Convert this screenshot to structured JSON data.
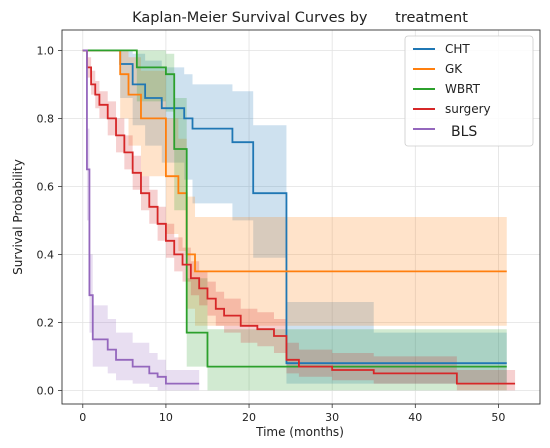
{
  "chart_data": {
    "type": "line",
    "title": "Kaplan-Meier Survival Curves by      treatment",
    "xlabel": "Time (months)",
    "ylabel": "Survival Probability",
    "xlim": [
      -2.5,
      55
    ],
    "ylim": [
      -0.04,
      1.06
    ],
    "xticks": [
      0,
      10,
      20,
      30,
      40,
      50
    ],
    "yticks": [
      0.0,
      0.2,
      0.4,
      0.6,
      0.8,
      1.0
    ],
    "grid": true,
    "legend_position": "top-right",
    "series": [
      {
        "name": "CHT",
        "color": "#1f77b4",
        "steps": [
          [
            0,
            1.0
          ],
          [
            4.5,
            0.96
          ],
          [
            6,
            0.9
          ],
          [
            7.5,
            0.86
          ],
          [
            9.5,
            0.83
          ],
          [
            12.2,
            0.8
          ],
          [
            13.2,
            0.77
          ],
          [
            18,
            0.73
          ],
          [
            20.5,
            0.58
          ],
          [
            24.5,
            0.08
          ],
          [
            35,
            0.08
          ],
          [
            51,
            0.08
          ]
        ],
        "ci_low": [
          [
            0,
            1.0
          ],
          [
            4.5,
            0.86
          ],
          [
            6,
            0.78
          ],
          [
            7.5,
            0.72
          ],
          [
            9.5,
            0.67
          ],
          [
            12.2,
            0.62
          ],
          [
            13.2,
            0.55
          ],
          [
            18,
            0.5
          ],
          [
            20.5,
            0.39
          ],
          [
            24.5,
            0.02
          ],
          [
            35,
            0.02
          ],
          [
            51,
            0.02
          ]
        ],
        "ci_high": [
          [
            0,
            1.0
          ],
          [
            4.5,
            1.0
          ],
          [
            6,
            0.99
          ],
          [
            7.5,
            0.97
          ],
          [
            9.5,
            0.95
          ],
          [
            12.2,
            0.93
          ],
          [
            13.2,
            0.9
          ],
          [
            18,
            0.88
          ],
          [
            20.5,
            0.78
          ],
          [
            24.5,
            0.26
          ],
          [
            35,
            0.17
          ],
          [
            51,
            0.17
          ]
        ]
      },
      {
        "name": "GK",
        "color": "#ff7f0e",
        "steps": [
          [
            0,
            1.0
          ],
          [
            4.5,
            0.93
          ],
          [
            5.5,
            0.87
          ],
          [
            7,
            0.8
          ],
          [
            10,
            0.63
          ],
          [
            11.5,
            0.58
          ],
          [
            12.5,
            0.4
          ],
          [
            13.5,
            0.35
          ],
          [
            51,
            0.35
          ]
        ],
        "ci_low": [
          [
            0,
            1.0
          ],
          [
            4.5,
            0.8
          ],
          [
            5.5,
            0.72
          ],
          [
            7,
            0.63
          ],
          [
            10,
            0.46
          ],
          [
            11.5,
            0.41
          ],
          [
            12.5,
            0.24
          ],
          [
            13.5,
            0.19
          ],
          [
            51,
            0.19
          ]
        ],
        "ci_high": [
          [
            0,
            1.0
          ],
          [
            4.5,
            1.0
          ],
          [
            5.5,
            0.98
          ],
          [
            7,
            0.94
          ],
          [
            10,
            0.8
          ],
          [
            11.5,
            0.74
          ],
          [
            12.5,
            0.57
          ],
          [
            13.5,
            0.51
          ],
          [
            51,
            0.51
          ]
        ]
      },
      {
        "name": "WBRT",
        "color": "#2ca02c",
        "steps": [
          [
            0,
            1.0
          ],
          [
            6.5,
            0.95
          ],
          [
            10,
            0.93
          ],
          [
            11,
            0.71
          ],
          [
            12.5,
            0.17
          ],
          [
            15,
            0.07
          ],
          [
            24,
            0.07
          ],
          [
            51,
            0.07
          ]
        ],
        "ci_low": [
          [
            0,
            1.0
          ],
          [
            6.5,
            0.85
          ],
          [
            10,
            0.82
          ],
          [
            11,
            0.53
          ],
          [
            12.5,
            0.07
          ],
          [
            15,
            0.0
          ],
          [
            24,
            0.0
          ],
          [
            51,
            0.0
          ]
        ],
        "ci_high": [
          [
            0,
            1.0
          ],
          [
            6.5,
            1.0
          ],
          [
            10,
            0.99
          ],
          [
            11,
            0.86
          ],
          [
            12.5,
            0.33
          ],
          [
            15,
            0.18
          ],
          [
            24,
            0.18
          ],
          [
            51,
            0.18
          ]
        ]
      },
      {
        "name": "surgery",
        "color": "#d62728",
        "steps": [
          [
            0,
            1.0
          ],
          [
            0.5,
            0.95
          ],
          [
            1,
            0.9
          ],
          [
            1.5,
            0.87
          ],
          [
            2,
            0.84
          ],
          [
            3,
            0.8
          ],
          [
            4,
            0.75
          ],
          [
            5,
            0.7
          ],
          [
            6,
            0.64
          ],
          [
            7,
            0.58
          ],
          [
            8,
            0.54
          ],
          [
            9,
            0.49
          ],
          [
            10,
            0.44
          ],
          [
            11,
            0.4
          ],
          [
            12,
            0.37
          ],
          [
            13,
            0.33
          ],
          [
            14,
            0.3
          ],
          [
            15,
            0.27
          ],
          [
            16,
            0.24
          ],
          [
            17,
            0.22
          ],
          [
            19,
            0.19
          ],
          [
            21,
            0.18
          ],
          [
            23,
            0.16
          ],
          [
            24.5,
            0.09
          ],
          [
            26,
            0.07
          ],
          [
            30,
            0.06
          ],
          [
            35,
            0.05
          ],
          [
            45,
            0.02
          ],
          [
            52,
            0.02
          ]
        ],
        "ci_low": [
          [
            0,
            1.0
          ],
          [
            0.5,
            0.92
          ],
          [
            1,
            0.87
          ],
          [
            1.5,
            0.83
          ],
          [
            2,
            0.8
          ],
          [
            3,
            0.75
          ],
          [
            4,
            0.7
          ],
          [
            5,
            0.65
          ],
          [
            6,
            0.59
          ],
          [
            7,
            0.53
          ],
          [
            8,
            0.49
          ],
          [
            9,
            0.44
          ],
          [
            10,
            0.39
          ],
          [
            11,
            0.35
          ],
          [
            12,
            0.32
          ],
          [
            13,
            0.28
          ],
          [
            14,
            0.25
          ],
          [
            15,
            0.22
          ],
          [
            16,
            0.19
          ],
          [
            17,
            0.17
          ],
          [
            19,
            0.14
          ],
          [
            21,
            0.13
          ],
          [
            23,
            0.11
          ],
          [
            24.5,
            0.05
          ],
          [
            26,
            0.04
          ],
          [
            30,
            0.03
          ],
          [
            35,
            0.02
          ],
          [
            45,
            0.0
          ],
          [
            52,
            0.0
          ]
        ],
        "ci_high": [
          [
            0,
            1.0
          ],
          [
            0.5,
            0.98
          ],
          [
            1,
            0.94
          ],
          [
            1.5,
            0.91
          ],
          [
            2,
            0.88
          ],
          [
            3,
            0.85
          ],
          [
            4,
            0.8
          ],
          [
            5,
            0.75
          ],
          [
            6,
            0.69
          ],
          [
            7,
            0.63
          ],
          [
            8,
            0.59
          ],
          [
            9,
            0.54
          ],
          [
            10,
            0.49
          ],
          [
            11,
            0.45
          ],
          [
            12,
            0.42
          ],
          [
            13,
            0.38
          ],
          [
            14,
            0.35
          ],
          [
            15,
            0.32
          ],
          [
            16,
            0.29
          ],
          [
            17,
            0.27
          ],
          [
            19,
            0.24
          ],
          [
            21,
            0.23
          ],
          [
            23,
            0.21
          ],
          [
            24.5,
            0.14
          ],
          [
            26,
            0.12
          ],
          [
            30,
            0.11
          ],
          [
            35,
            0.1
          ],
          [
            45,
            0.06
          ],
          [
            52,
            0.06
          ]
        ]
      },
      {
        "name": "BLS",
        "color": "#9467bd",
        "steps": [
          [
            0,
            1.0
          ],
          [
            0.5,
            0.65
          ],
          [
            0.8,
            0.28
          ],
          [
            1.2,
            0.15
          ],
          [
            3,
            0.12
          ],
          [
            4,
            0.09
          ],
          [
            6,
            0.07
          ],
          [
            8,
            0.05
          ],
          [
            9,
            0.04
          ],
          [
            10,
            0.02
          ],
          [
            14,
            0.02
          ]
        ],
        "ci_low": [
          [
            0,
            1.0
          ],
          [
            0.5,
            0.5
          ],
          [
            0.8,
            0.17
          ],
          [
            1.2,
            0.07
          ],
          [
            3,
            0.05
          ],
          [
            4,
            0.03
          ],
          [
            6,
            0.02
          ],
          [
            8,
            0.01
          ],
          [
            9,
            0.0
          ],
          [
            10,
            0.0
          ],
          [
            14,
            0.0
          ]
        ],
        "ci_high": [
          [
            0,
            1.0
          ],
          [
            0.5,
            0.77
          ],
          [
            0.8,
            0.4
          ],
          [
            1.2,
            0.25
          ],
          [
            3,
            0.21
          ],
          [
            4,
            0.17
          ],
          [
            6,
            0.14
          ],
          [
            8,
            0.11
          ],
          [
            9,
            0.09
          ],
          [
            10,
            0.06
          ],
          [
            14,
            0.06
          ]
        ]
      }
    ]
  }
}
